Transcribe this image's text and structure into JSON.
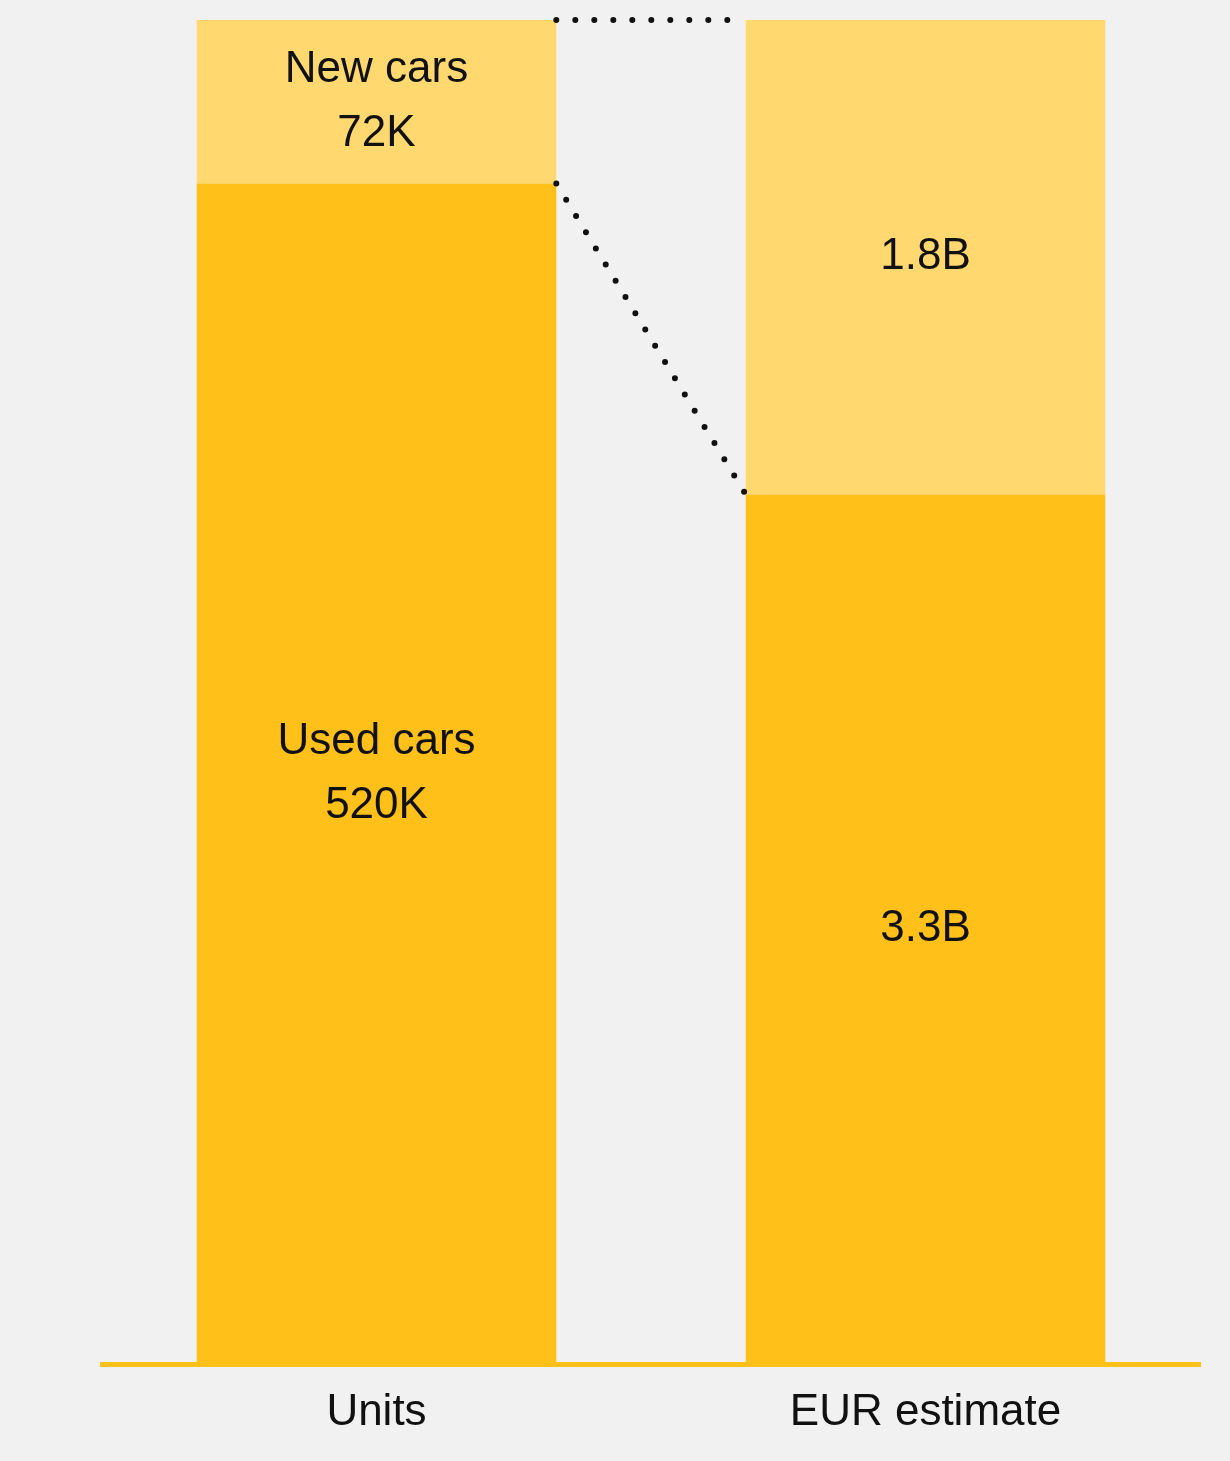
{
  "chart_data": [
    {
      "type": "bar",
      "stacked": true,
      "categories": [
        "Units"
      ],
      "series": [
        {
          "name": "Used cars",
          "color": "#ffc01a",
          "values": [
            520000
          ],
          "value_labels": [
            "520K"
          ]
        },
        {
          "name": "New cars",
          "color": "#ffd970",
          "values": [
            72000
          ],
          "value_labels": [
            "72K"
          ]
        }
      ]
    },
    {
      "type": "bar",
      "stacked": true,
      "categories": [
        "EUR estimate"
      ],
      "series": [
        {
          "color": "#ffc01a",
          "values": [
            3300000000
          ],
          "value_labels": [
            "3.3B"
          ]
        },
        {
          "color": "#ffd970",
          "values": [
            1800000000
          ],
          "value_labels": [
            "1.8B"
          ]
        }
      ]
    }
  ]
}
